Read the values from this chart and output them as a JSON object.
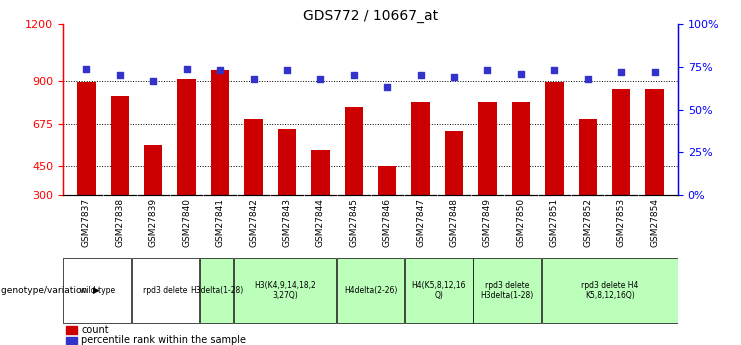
{
  "title": "GDS772 / 10667_at",
  "samples": [
    "GSM27837",
    "GSM27838",
    "GSM27839",
    "GSM27840",
    "GSM27841",
    "GSM27842",
    "GSM27843",
    "GSM27844",
    "GSM27845",
    "GSM27846",
    "GSM27847",
    "GSM27848",
    "GSM27849",
    "GSM27850",
    "GSM27851",
    "GSM27852",
    "GSM27853",
    "GSM27854"
  ],
  "counts": [
    895,
    820,
    565,
    910,
    960,
    700,
    645,
    535,
    765,
    455,
    790,
    635,
    790,
    790,
    895,
    700,
    860,
    860
  ],
  "percentiles": [
    74,
    70,
    67,
    74,
    73,
    68,
    73,
    68,
    70,
    63,
    70,
    69,
    73,
    71,
    73,
    68,
    72,
    72
  ],
  "ylim_left": [
    300,
    1200
  ],
  "ylim_right": [
    0,
    100
  ],
  "yticks_left": [
    300,
    450,
    675,
    900,
    1200
  ],
  "yticks_right": [
    0,
    25,
    50,
    75,
    100
  ],
  "bar_color": "#cc0000",
  "dot_color": "#3333cc",
  "groups": [
    {
      "label": "wild type",
      "start": 0,
      "end": 2,
      "color": "#ffffff"
    },
    {
      "label": "rpd3 delete",
      "start": 2,
      "end": 4,
      "color": "#ffffff"
    },
    {
      "label": "H3delta(1-28)",
      "start": 4,
      "end": 5,
      "color": "#bbffbb"
    },
    {
      "label": "H3(K4,9,14,18,2\n3,27Q)",
      "start": 5,
      "end": 8,
      "color": "#bbffbb"
    },
    {
      "label": "H4delta(2-26)",
      "start": 8,
      "end": 10,
      "color": "#bbffbb"
    },
    {
      "label": "H4(K5,8,12,16\nQ)",
      "start": 10,
      "end": 12,
      "color": "#bbffbb"
    },
    {
      "label": "rpd3 delete\nH3delta(1-28)",
      "start": 12,
      "end": 14,
      "color": "#bbffbb"
    },
    {
      "label": "rpd3 delete H4\nK5,8,12,16Q)",
      "start": 14,
      "end": 18,
      "color": "#bbffbb"
    }
  ],
  "legend_count_color": "#cc0000",
  "legend_dot_color": "#3333cc",
  "xtick_bg": "#cccccc"
}
